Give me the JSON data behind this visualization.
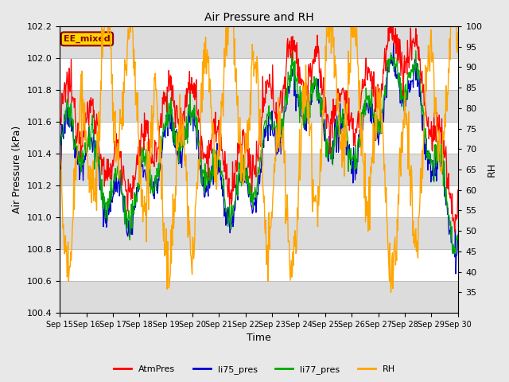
{
  "title": "Air Pressure and RH",
  "xlabel": "Time",
  "ylabel_left": "Air Pressure (kPa)",
  "ylabel_right": "RH",
  "ylim_left": [
    100.4,
    102.2
  ],
  "ylim_right": [
    30,
    100
  ],
  "yticks_left": [
    100.4,
    100.6,
    100.8,
    101.0,
    101.2,
    101.4,
    101.6,
    101.8,
    102.0,
    102.2
  ],
  "yticks_right": [
    35,
    40,
    45,
    50,
    55,
    60,
    65,
    70,
    75,
    80,
    85,
    90,
    95,
    100
  ],
  "xtick_labels": [
    "Sep 15",
    "Sep 16",
    "Sep 17",
    "Sep 18",
    "Sep 19",
    "Sep 20",
    "Sep 21",
    "Sep 22",
    "Sep 23",
    "Sep 24",
    "Sep 25",
    "Sep 26",
    "Sep 27",
    "Sep 28",
    "Sep 29",
    "Sep 30"
  ],
  "annotation_text": "EE_mixed",
  "annotation_color": "#8B0000",
  "annotation_bg": "#FFD700",
  "colors": {
    "AtmPres": "#FF0000",
    "li75_pres": "#0000CC",
    "li77_pres": "#00AA00",
    "RH": "#FFA500"
  },
  "bg_color": "#E8E8E8",
  "plot_bg_light": "#FFFFFF",
  "plot_bg_dark": "#DCDCDC",
  "grid_color": "#BBBBBB"
}
